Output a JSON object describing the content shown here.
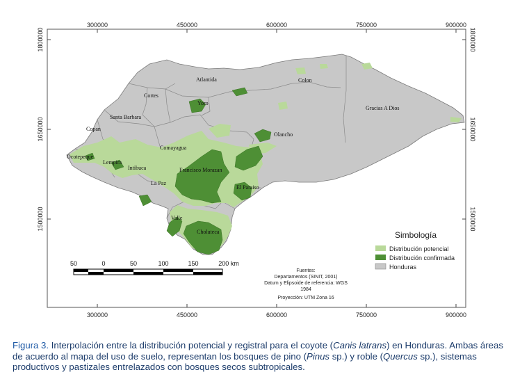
{
  "axes": {
    "top_x": [
      "300000",
      "450000",
      "600000",
      "750000",
      "900000"
    ],
    "bottom_x": [
      "300000",
      "450000",
      "600000",
      "750000",
      "900000"
    ],
    "left_y": [
      "1800000",
      "1650000",
      "1500000"
    ],
    "right_y": [
      "1800000",
      "1650000",
      "1500000"
    ]
  },
  "departments": [
    "Atlantida",
    "Colon",
    "Cortes",
    "Yoro",
    "Gracias A Dios",
    "Santa Barbara",
    "Copan",
    "Olancho",
    "Comayagua",
    "Ocotepeque",
    "Lempira",
    "Intibuca",
    "Francisco Morazan",
    "La Paz",
    "El Paraiso",
    "Valle",
    "Choluteca"
  ],
  "legend": {
    "title": "Simbología",
    "items": [
      {
        "label": "Distribución potencial",
        "color": "#b9d99a"
      },
      {
        "label": "Distribución confirmada",
        "color": "#4e8f35"
      },
      {
        "label": "Honduras",
        "color": "#c8c8c8"
      }
    ]
  },
  "scale": {
    "labels": [
      "50",
      "0",
      "50",
      "100",
      "150",
      "200 km"
    ]
  },
  "sources": [
    "Fuentes:",
    "Departamentos (SINIT, 2001)",
    "Datum y Elipsoide de referencia: WGS",
    "1984",
    "Proyección: UTM Zona 16"
  ],
  "caption": {
    "figure": "Figura 3.",
    "line1": " Interpolación entre la distribución potencial y registral para el coyote (",
    "species": "Canis latrans",
    "line1b": ") en Honduras. Ambas áreas de acuerdo al mapa del uso de suelo, representan los bosques de pino (",
    "pinus": "Pinus",
    "sp1": " sp.) y roble (",
    "quercus": "Quercus",
    "sp2": " sp.), sistemas productivos y pastizales entrelazados con bosques secos subtropicales."
  }
}
